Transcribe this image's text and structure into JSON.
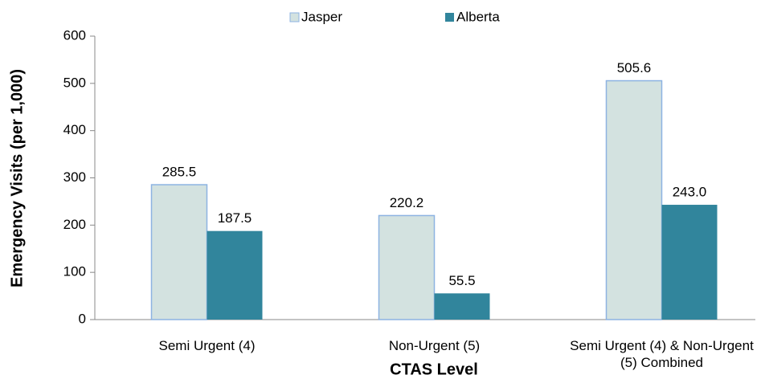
{
  "chart_data": {
    "type": "bar",
    "x_label": "CTAS Level",
    "y_label": "Emergency Visits (per 1,000)",
    "categories": [
      "Semi Urgent (4)",
      "Non-Urgent (5)",
      "Semi Urgent (4) & Non-Urgent (5) Combined"
    ],
    "series": [
      {
        "name": "Jasper",
        "color": "#d3e2e0",
        "edge": "#8db3e2",
        "values": [
          285.5,
          220.2,
          505.6
        ]
      },
      {
        "name": "Alberta",
        "color": "#31859c",
        "values": [
          187.5,
          55.5,
          243.0
        ],
        "value_labels": [
          "187.5",
          "55.5",
          "243.0"
        ]
      }
    ],
    "ylim": [
      0,
      600
    ],
    "yticks": [
      0,
      100,
      200,
      300,
      400,
      500,
      600
    ],
    "grid": false,
    "legend": "top"
  }
}
